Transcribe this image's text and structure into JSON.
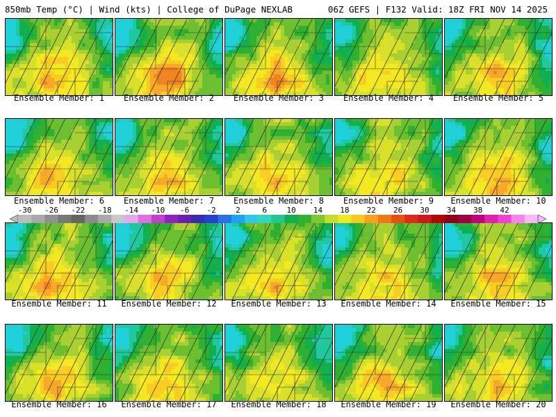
{
  "header": {
    "left": "850mb Temp (°C) | Wind (kts) | College of DuPage NEXLAB",
    "right": "06Z GEFS | F132 Valid: 18Z FRI NOV 14 2025"
  },
  "colorbar": {
    "labels": [
      "-30",
      "-26",
      "-22",
      "-18",
      "-14",
      "-10",
      "-6",
      "-2",
      "2",
      "6",
      "10",
      "14",
      "18",
      "22",
      "26",
      "30",
      "34",
      "38",
      "42"
    ],
    "colors": [
      "#bcbcbc",
      "#a8a8a8",
      "#909090",
      "#787878",
      "#646464",
      "#8c8c8c",
      "#a8a8a8",
      "#c8c8c8",
      "#e8a8e8",
      "#e070e0",
      "#c040d0",
      "#9020c0",
      "#6a1fb0",
      "#3a2ab0",
      "#2840d0",
      "#2a70e8",
      "#20a0f0",
      "#30c8e8",
      "#30d8c0",
      "#20c890",
      "#10b050",
      "#30b030",
      "#80c830",
      "#c8dc30",
      "#f0e820",
      "#f8c820",
      "#f8a020",
      "#f07818",
      "#e85010",
      "#e02818",
      "#d01818",
      "#b00808",
      "#900010",
      "#a00040",
      "#c00080",
      "#e020b0",
      "#f040d8",
      "#f880f0",
      "#f8b8f8"
    ]
  },
  "panels": [
    {
      "label": "Ensemble Member: 1",
      "warm": 0.6
    },
    {
      "label": "Ensemble Member: 2",
      "warm": 0.7
    },
    {
      "label": "Ensemble Member: 3",
      "warm": 0.65
    },
    {
      "label": "Ensemble Member: 4",
      "warm": 0.55
    },
    {
      "label": "Ensemble Member: 5",
      "warm": 0.6
    },
    {
      "label": "Ensemble Member: 6",
      "warm": 0.55
    },
    {
      "label": "Ensemble Member: 7",
      "warm": 0.55
    },
    {
      "label": "Ensemble Member: 8",
      "warm": 0.5
    },
    {
      "label": "Ensemble Member: 9",
      "warm": 0.45
    },
    {
      "label": "Ensemble Member: 10",
      "warm": 0.7
    },
    {
      "label": "Ensemble Member: 11",
      "warm": 0.65
    },
    {
      "label": "Ensemble Member: 12",
      "warm": 0.5
    },
    {
      "label": "Ensemble Member: 13",
      "warm": 0.55
    },
    {
      "label": "Ensemble Member: 14",
      "warm": 0.45
    },
    {
      "label": "Ensemble Member: 15",
      "warm": 0.6
    },
    {
      "label": "Ensemble Member: 16",
      "warm": 0.5
    },
    {
      "label": "Ensemble Member: 17",
      "warm": 0.55
    },
    {
      "label": "Ensemble Member: 18",
      "warm": 0.4
    },
    {
      "label": "Ensemble Member: 19",
      "warm": 0.55
    },
    {
      "label": "Ensemble Member: 20",
      "warm": 0.55
    }
  ]
}
